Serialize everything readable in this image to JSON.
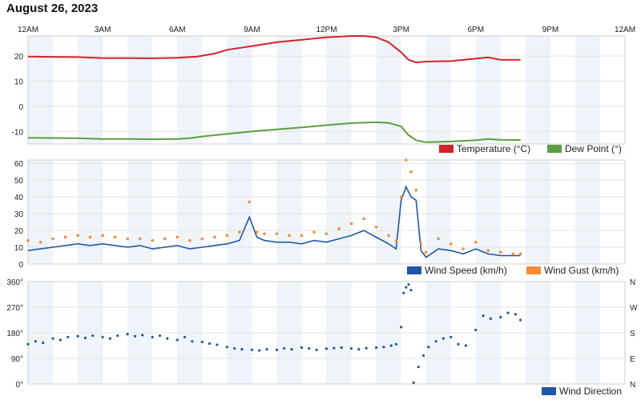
{
  "title": "August 26, 2023",
  "time_labels": [
    "12AM",
    "3AM",
    "6AM",
    "9AM",
    "12PM",
    "3PM",
    "6PM",
    "9PM",
    "12AM"
  ],
  "colors": {
    "temperature": "#d1232a",
    "dew_point": "#5a9e3f",
    "wind_speed": "#1f57a3",
    "wind_gust": "#f28c38",
    "wind_direction": "#1f57a3",
    "band": "#eef4fa",
    "grid": "#e3e3e3"
  },
  "chart_data": [
    {
      "type": "line",
      "x_unit": "hours since 12AM",
      "xlim": [
        0,
        24
      ],
      "y_ticks": [
        "20",
        "10",
        "0",
        "-10"
      ],
      "ylim": [
        -15,
        28
      ],
      "series": [
        {
          "name": "Temperature (°C)",
          "x": [
            0,
            1,
            2,
            3,
            4,
            5,
            6,
            6.8,
            7.5,
            8,
            9,
            10,
            11,
            12,
            13,
            13.5,
            14,
            14.5,
            15,
            15.3,
            15.6,
            16,
            17,
            18,
            18.5,
            19,
            19.8
          ],
          "y": [
            19.8,
            19.7,
            19.6,
            19.2,
            19.2,
            19.1,
            19.3,
            19.8,
            21.0,
            22.5,
            24.0,
            25.5,
            26.5,
            27.5,
            28.0,
            28.0,
            27.5,
            25.5,
            21.5,
            18.5,
            17.5,
            17.8,
            18.0,
            19.0,
            19.5,
            18.5,
            18.5
          ]
        },
        {
          "name": "Dew Point (°)",
          "x": [
            0,
            1,
            2,
            3,
            4,
            5,
            6,
            6.5,
            7,
            8,
            9,
            10,
            11,
            12,
            13,
            14,
            14.5,
            15,
            15.3,
            15.6,
            16,
            17,
            18,
            18.5,
            19,
            19.8
          ],
          "y": [
            -12.5,
            -12.6,
            -12.7,
            -13.0,
            -13.0,
            -13.1,
            -13.0,
            -12.7,
            -12.0,
            -11.0,
            -10.0,
            -9.2,
            -8.4,
            -7.5,
            -6.7,
            -6.3,
            -6.6,
            -8.0,
            -11.5,
            -13.5,
            -14.3,
            -14.0,
            -13.5,
            -13.0,
            -13.3,
            -13.4
          ]
        }
      ]
    },
    {
      "type": "line",
      "x_unit": "hours since 12AM",
      "xlim": [
        0,
        24
      ],
      "y_ticks": [
        "60",
        "50",
        "40",
        "30",
        "20",
        "10",
        "0"
      ],
      "ylim": [
        0,
        62
      ],
      "series": [
        {
          "name": "Wind Speed (km/h)",
          "x": [
            0,
            0.5,
            1,
            1.5,
            2,
            2.5,
            3,
            3.5,
            4,
            4.5,
            5,
            5.5,
            6,
            6.5,
            7,
            7.5,
            8,
            8.5,
            8.9,
            9.2,
            9.5,
            10,
            10.5,
            11,
            11.5,
            12,
            12.5,
            13,
            13.5,
            14,
            14.5,
            14.8,
            15,
            15.2,
            15.4,
            15.6,
            15.8,
            16,
            16.5,
            17,
            17.5,
            18,
            18.5,
            19,
            19.5,
            19.8
          ],
          "y": [
            8,
            9,
            10,
            11,
            12,
            11,
            12,
            11,
            10,
            11,
            9,
            10,
            11,
            9,
            10,
            11,
            12,
            14,
            28,
            16,
            14,
            13,
            13,
            12,
            14,
            13,
            15,
            17,
            20,
            16,
            12,
            9,
            38,
            46,
            40,
            38,
            8,
            4,
            9,
            8,
            6,
            9,
            6,
            5,
            5,
            5
          ]
        },
        {
          "name": "Wind Gust (km/h)",
          "x": [
            0,
            0.5,
            1,
            1.5,
            2,
            2.5,
            3,
            3.5,
            4,
            4.5,
            5,
            5.5,
            6,
            6.5,
            7,
            7.5,
            8,
            8.5,
            8.9,
            9.2,
            9.5,
            10,
            10.5,
            11,
            11.5,
            12,
            12.5,
            13,
            13.5,
            14,
            14.5,
            14.8,
            15,
            15.2,
            15.4,
            15.6,
            15.8,
            16,
            16.5,
            17,
            17.5,
            18,
            18.5,
            19,
            19.5,
            19.8
          ],
          "y": [
            14,
            13,
            15,
            16,
            17,
            16,
            17,
            16,
            15,
            15,
            14,
            15,
            16,
            14,
            15,
            16,
            17,
            19,
            37,
            19,
            18,
            18,
            17,
            17,
            19,
            18,
            21,
            24,
            27,
            22,
            17,
            14,
            40,
            62,
            55,
            44,
            12,
            7,
            15,
            12,
            9,
            13,
            8,
            7,
            6,
            6
          ]
        }
      ]
    },
    {
      "type": "scatter",
      "x_unit": "hours since 12AM",
      "xlim": [
        0,
        24
      ],
      "y_ticks": [
        "360°",
        "270°",
        "180°",
        "90°",
        "0°"
      ],
      "y_ticks_right": [
        "N",
        "W",
        "S",
        "E",
        "N"
      ],
      "ylim": [
        0,
        360
      ],
      "series": [
        {
          "name": "Wind Direction",
          "x": [
            0,
            0.3,
            0.6,
            1,
            1.3,
            1.6,
            2,
            2.3,
            2.6,
            3,
            3.3,
            3.6,
            4,
            4.3,
            4.6,
            5,
            5.3,
            5.6,
            6,
            6.3,
            6.6,
            7,
            7.3,
            7.6,
            8,
            8.3,
            8.6,
            9,
            9.3,
            9.6,
            10,
            10.3,
            10.6,
            11,
            11.3,
            11.6,
            12,
            12.3,
            12.6,
            13,
            13.3,
            13.6,
            14,
            14.3,
            14.6,
            14.8,
            15,
            15.1,
            15.2,
            15.3,
            15.4,
            15.5,
            15.7,
            15.9,
            16.1,
            16.4,
            16.7,
            17,
            17.3,
            17.6,
            18,
            18.3,
            18.6,
            19,
            19.3,
            19.6,
            19.8
          ],
          "y": [
            140,
            150,
            145,
            160,
            155,
            165,
            168,
            162,
            170,
            165,
            160,
            170,
            175,
            168,
            172,
            165,
            170,
            160,
            155,
            165,
            150,
            148,
            142,
            138,
            130,
            125,
            122,
            120,
            118,
            122,
            120,
            125,
            122,
            128,
            125,
            120,
            124,
            126,
            128,
            125,
            122,
            126,
            128,
            130,
            135,
            140,
            200,
            320,
            340,
            350,
            330,
            5,
            60,
            100,
            130,
            150,
            160,
            165,
            140,
            135,
            190,
            240,
            230,
            235,
            250,
            245,
            225
          ]
        }
      ]
    }
  ]
}
